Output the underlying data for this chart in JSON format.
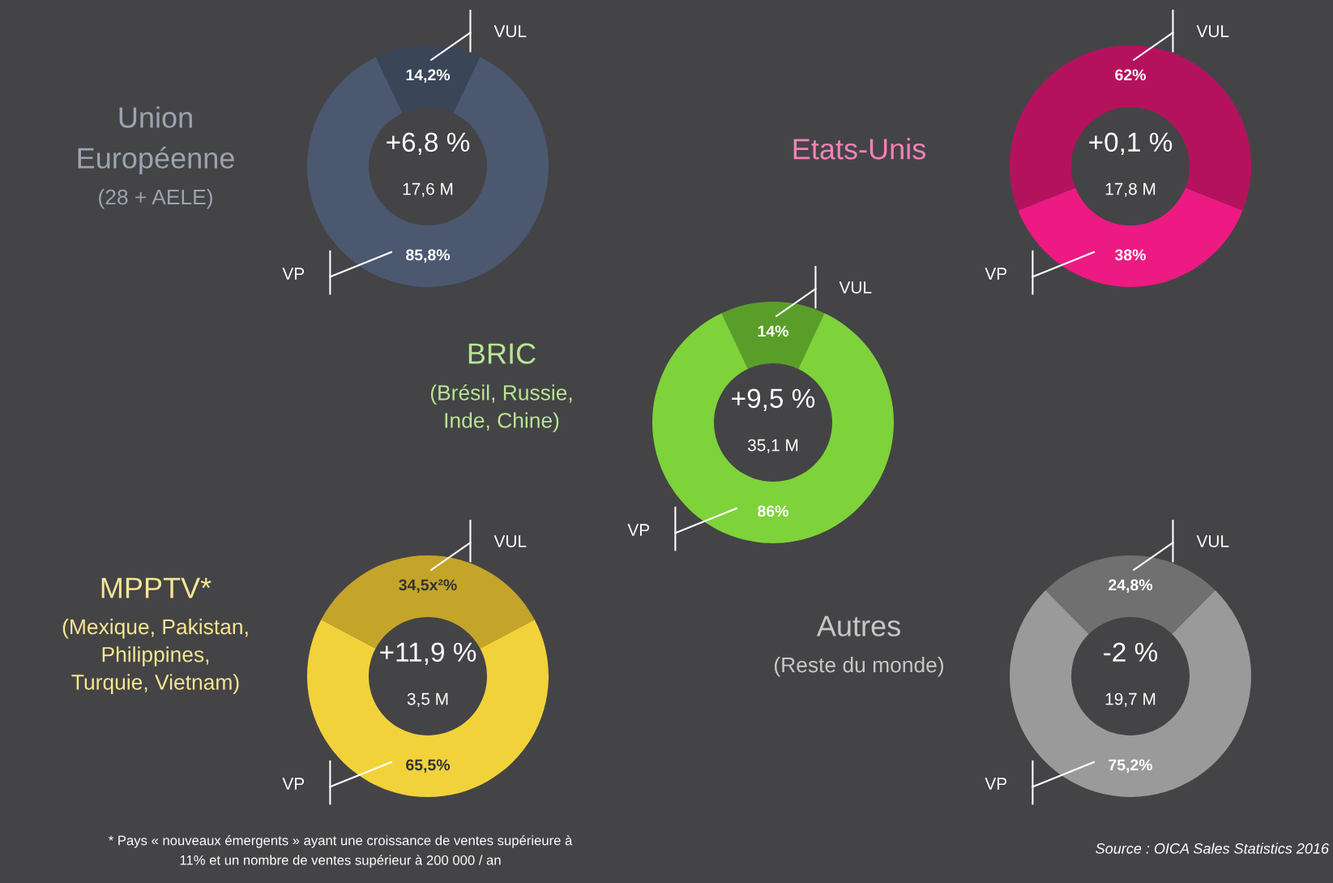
{
  "chart_data": [
    {
      "type": "donut",
      "title": "Union\nEuropéenne",
      "subtitle": "(28 + AELE)",
      "categories": [
        "VUL",
        "VP"
      ],
      "values": [
        14.2,
        85.8
      ],
      "colors": [
        "#3a4558",
        "#4b5870"
      ],
      "value_labels": [
        "14,2%",
        "85,8%"
      ],
      "annotations": [
        "+6,8 %",
        "17,6 M"
      ],
      "legend": false
    },
    {
      "type": "donut",
      "title": "Etats-Unis",
      "categories": [
        "VUL",
        "VP"
      ],
      "values": [
        62,
        38
      ],
      "colors": [
        "#b5125e",
        "#ec1a82"
      ],
      "value_labels": [
        "62%",
        "38%"
      ],
      "annotations": [
        "+0,1 %",
        "17,8 M"
      ],
      "legend": false
    },
    {
      "type": "donut",
      "title": "BRIC",
      "subtitle": "(Brésil, Russie,\nInde, Chine)",
      "categories": [
        "VUL",
        "VP"
      ],
      "values": [
        14,
        86
      ],
      "colors": [
        "#5a9e2a",
        "#7ed23a"
      ],
      "value_labels": [
        "14%",
        "86%"
      ],
      "annotations": [
        "+9,5 %",
        "35,1 M"
      ],
      "legend": false
    },
    {
      "type": "donut",
      "title": "MPPTV*",
      "subtitle": "(Mexique, Pakistan,\nPhilippines,\nTurquie, Vietnam)",
      "categories": [
        "VUL",
        "VP"
      ],
      "values": [
        34.5,
        65.5
      ],
      "colors": [
        "#c4a52a",
        "#f2d23a"
      ],
      "value_labels": [
        "34,5x²%",
        "65,5%"
      ],
      "annotations": [
        "+11,9 %",
        "3,5 M",
        "* Pays « nouveaux émergents » ayant une croissance de ventes supérieure à\n11% et un nombre de ventes supérieur à 200 000 / an"
      ],
      "legend": false
    },
    {
      "type": "donut",
      "title": "Autres",
      "subtitle": "(Reste du monde)",
      "categories": [
        "VUL",
        "VP"
      ],
      "values": [
        24.8,
        75.2
      ],
      "colors": [
        "#707070",
        "#9a9a9a"
      ],
      "value_labels": [
        "24,8%",
        "75,2%"
      ],
      "annotations": [
        "-2 %",
        "19,7 M",
        "Source : OICA Sales Statistics 2016"
      ],
      "legend": false
    }
  ]
}
